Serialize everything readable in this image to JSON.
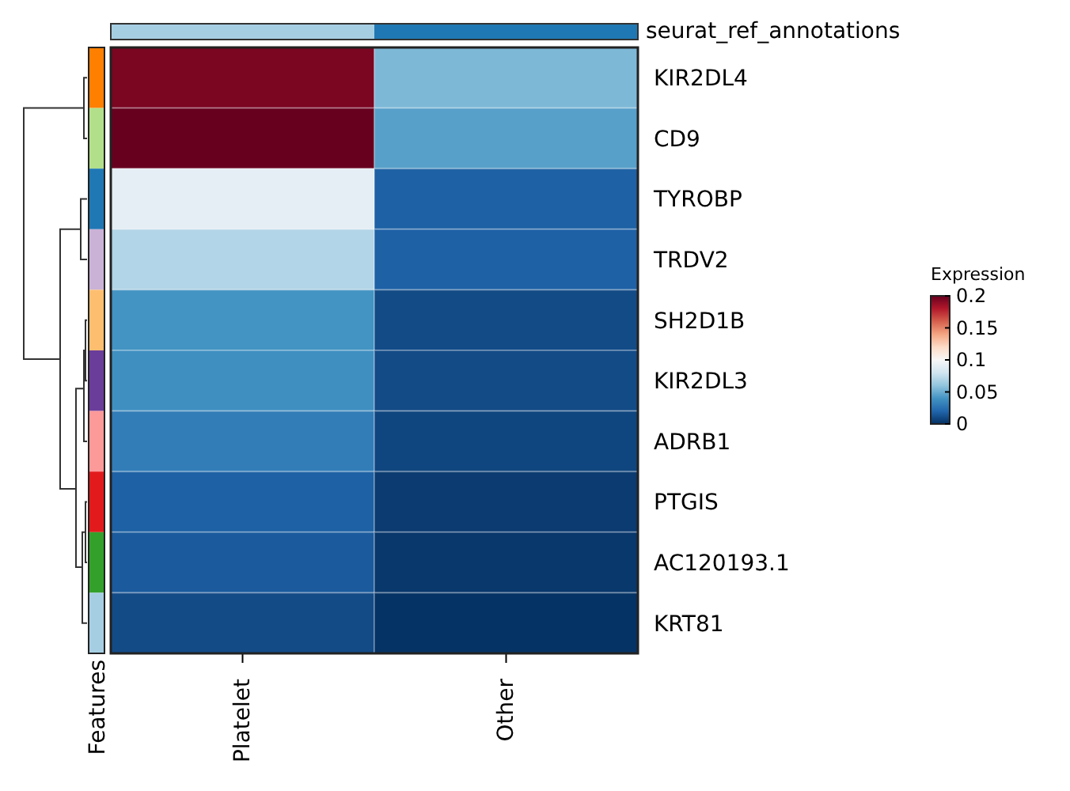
{
  "chart_data": {
    "type": "heatmap",
    "categories": [
      "Platelet",
      "Other"
    ],
    "y_categories": [
      "KIR2DL4",
      "CD9",
      "TYROBP",
      "TRDV2",
      "SH2D1B",
      "KIR2DL3",
      "ADRB1",
      "PTGIS",
      "AC120193.1",
      "KRT81"
    ],
    "cells": [
      [
        0.195,
        0.055
      ],
      [
        0.2,
        0.045
      ],
      [
        0.09,
        0.018
      ],
      [
        0.07,
        0.018
      ],
      [
        0.04,
        0.01
      ],
      [
        0.038,
        0.01
      ],
      [
        0.03,
        0.008
      ],
      [
        0.018,
        0.004
      ],
      [
        0.016,
        0.003
      ],
      [
        0.01,
        0.001
      ]
    ],
    "clabel": "Expression",
    "clim": [
      0,
      0.2
    ],
    "cticks": [
      0,
      0.05,
      0.1,
      0.15,
      0.2
    ],
    "annotations": [
      "seurat_ref_annotations",
      "Features"
    ]
  }
}
